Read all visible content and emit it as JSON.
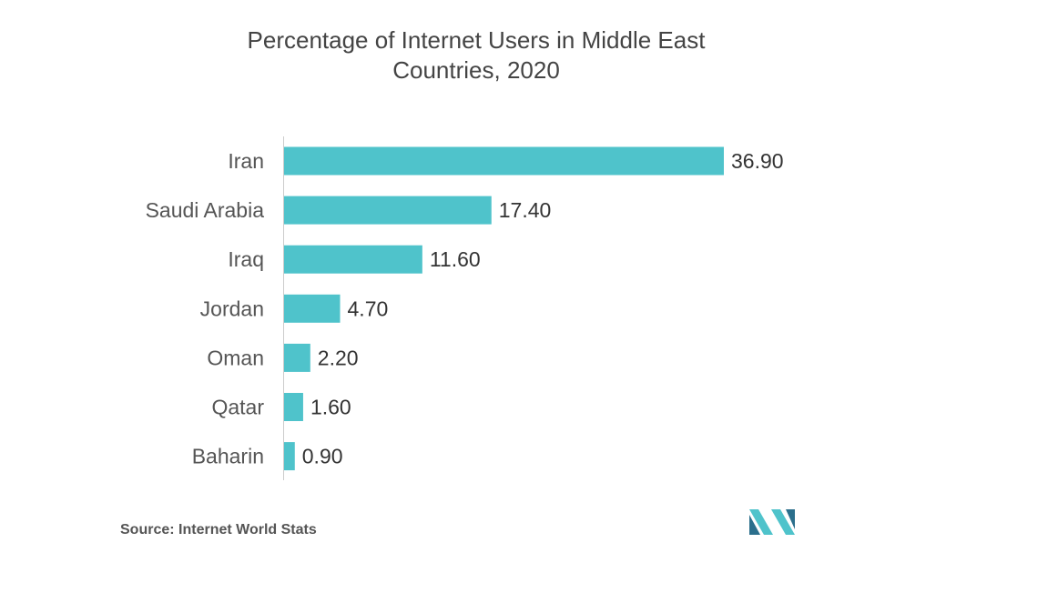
{
  "chart_data": {
    "type": "bar",
    "orientation": "horizontal",
    "title": "Percentage of Internet Users in Middle East\nCountries, 2020",
    "categories": [
      "Iran",
      "Saudi Arabia",
      "Iraq",
      "Jordan",
      "Oman",
      "Qatar",
      "Baharin"
    ],
    "values": [
      36.9,
      17.4,
      11.6,
      4.7,
      2.2,
      1.6,
      0.9
    ],
    "value_labels": [
      "36.90",
      "17.40",
      "11.60",
      "4.70",
      "2.20",
      "1.60",
      "0.90"
    ],
    "xlim": [
      0,
      36.9
    ],
    "bar_color": "#4FC3CB",
    "xlabel": "",
    "ylabel": "",
    "grid": false,
    "legend": "none"
  },
  "footer": {
    "source": "Source: Internet World Stats"
  },
  "logo": {
    "icon": "mordor-intelligence-logo-icon",
    "colors": [
      "#2B6F8C",
      "#4FC3CB"
    ]
  }
}
